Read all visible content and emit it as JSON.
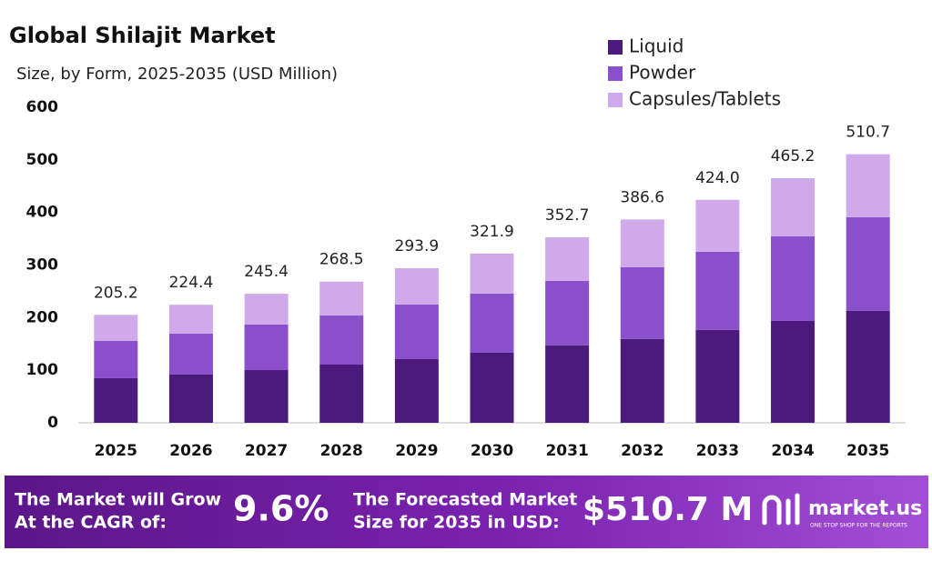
{
  "chart_data": {
    "type": "stacked-bar",
    "title": "Global Shilajit Market",
    "subtitle": "Size, by Form, 2025-2035 (USD Million)",
    "categories": [
      "2025",
      "2026",
      "2027",
      "2028",
      "2029",
      "2030",
      "2031",
      "2032",
      "2033",
      "2034",
      "2035"
    ],
    "series": [
      {
        "name": "Liquid",
        "color": "#4b1a7c",
        "values": [
          84.8,
          91.7,
          100.3,
          110.7,
          121.1,
          133.2,
          147.1,
          159.2,
          176.5,
          193.8,
          212.8
        ]
      },
      {
        "name": "Powder",
        "color": "#8a4fca",
        "values": [
          70.9,
          77.9,
          86.6,
          93.5,
          103.8,
          112.5,
          122.8,
          136.6,
          148.8,
          160.9,
          178.2
        ]
      },
      {
        "name": "Capsules/Tablets",
        "color": "#d0a9ea",
        "values": [
          49.5,
          54.8,
          58.5,
          64.3,
          69.0,
          76.2,
          82.8,
          90.8,
          98.7,
          110.5,
          119.7
        ]
      }
    ],
    "totals": [
      205.2,
      224.4,
      245.4,
      268.5,
      293.9,
      321.9,
      352.7,
      386.6,
      424.0,
      465.2,
      510.7
    ],
    "total_labels": [
      "205.2",
      "224.4",
      "245.4",
      "268.5",
      "293.9",
      "321.9",
      "352.7",
      "386.6",
      "424.0",
      "465.2",
      "510.7"
    ],
    "ylim": [
      0,
      600
    ],
    "yticks": [
      0,
      100,
      200,
      300,
      400,
      500,
      600
    ],
    "grid": false,
    "legend": "top-right"
  },
  "footer": {
    "cagr_text": [
      "The Market will Grow",
      "At the CAGR of:"
    ],
    "cagr_value": "9.6%",
    "forecast_text": [
      "The Forecasted Market",
      "Size for 2035 in USD:"
    ],
    "forecast_value": "$510.7 M",
    "brand": "market.us",
    "tagline": "ONE STOP SHOP FOR THE REPORTS"
  }
}
